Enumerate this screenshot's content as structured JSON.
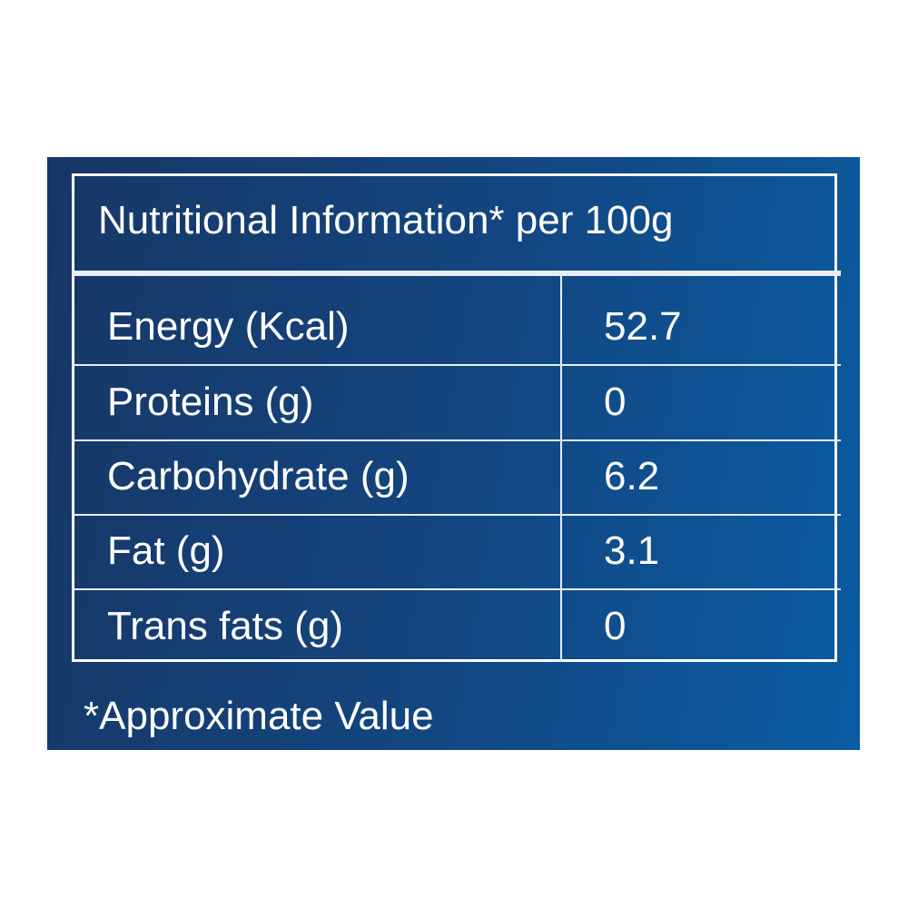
{
  "table": {
    "title": "Nutritional Information* per 100g",
    "rows": [
      [
        "Energy (Kcal)",
        "52.7"
      ],
      [
        "Proteins (g)",
        "0"
      ],
      [
        "Carbohydrate (g)",
        "6.2"
      ],
      [
        "Fat (g)",
        "3.1"
      ],
      [
        "Trans fats (g)",
        "0"
      ]
    ],
    "footnote": "*Approximate Value"
  }
}
